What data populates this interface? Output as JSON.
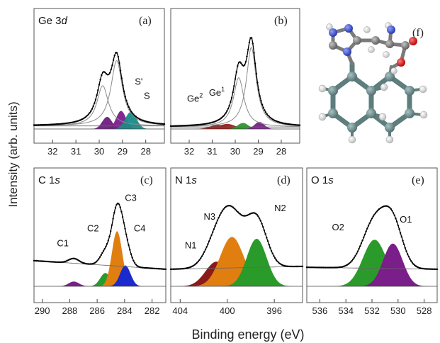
{
  "figure": {
    "ylabel": "Intensity (arb. units)",
    "xlabel": "Binding energy (eV)"
  },
  "chart_data": [
    {
      "id": "a",
      "type": "line",
      "panel_label": "(a)",
      "title_main": "Ge 3",
      "title_orbital": "d",
      "x_reversed": true,
      "xlim": [
        32.8,
        27.2
      ],
      "xticks": [
        32,
        31,
        30,
        29,
        28
      ],
      "y_norm_range": [
        0,
        1
      ],
      "baseline": 0.03,
      "envelope_color": "#000000",
      "components": [
        {
          "name": "",
          "center": 29.66,
          "width": 0.21,
          "amp": 0.12,
          "color": "#6b1e7e"
        },
        {
          "name": "S'",
          "center": 29.06,
          "width": 0.21,
          "amp": 0.18,
          "color": "#7a1e8a"
        },
        {
          "name": "S",
          "center": 28.64,
          "width": 0.24,
          "amp": 0.17,
          "color": "#1a8a8a"
        },
        {
          "name": "",
          "center": 29.25,
          "width": 0.25,
          "amp": 0.65,
          "color": "#888888"
        },
        {
          "name": "",
          "center": 29.85,
          "width": 0.25,
          "amp": 0.4,
          "color": "#888888"
        }
      ],
      "annotations": [
        {
          "text": "S'",
          "x": 28.3,
          "y": 0.44
        },
        {
          "text": "S",
          "x": 27.95,
          "y": 0.3
        }
      ]
    },
    {
      "id": "b",
      "type": "line",
      "panel_label": "(b)",
      "title_main": "",
      "title_orbital": "",
      "x_reversed": true,
      "xlim": [
        32.8,
        27.2
      ],
      "xticks": [
        32,
        31,
        30,
        29,
        28
      ],
      "y_norm_range": [
        0,
        1
      ],
      "baseline": 0.02,
      "envelope_color": "#000000",
      "components": [
        {
          "name": "Ge2",
          "center": 30.75,
          "width": 0.35,
          "amp": 0.04,
          "color": "#8b1a1a"
        },
        {
          "name": "Ge1",
          "center": 30.35,
          "width": 0.35,
          "amp": 0.05,
          "color": "#9b1a1a"
        },
        {
          "name": "",
          "center": 29.66,
          "width": 0.23,
          "amp": 0.06,
          "color": "#2a9a2a"
        },
        {
          "name": "",
          "center": 28.95,
          "width": 0.21,
          "amp": 0.07,
          "color": "#7a1e8a"
        },
        {
          "name": "",
          "center": 29.3,
          "width": 0.22,
          "amp": 0.79,
          "color": "#888888"
        },
        {
          "name": "",
          "center": 29.85,
          "width": 0.23,
          "amp": 0.49,
          "color": "#888888"
        }
      ],
      "annotations": [
        {
          "text": "Ge",
          "sup": "2",
          "x": 31.75,
          "y": 0.27
        },
        {
          "text": "Ge",
          "sup": "1",
          "x": 30.8,
          "y": 0.33
        }
      ]
    },
    {
      "id": "c",
      "type": "line",
      "panel_label": "(c)",
      "title_main": "C 1",
      "title_orbital": "s",
      "x_reversed": true,
      "xlim": [
        290.6,
        281.0
      ],
      "xticks": [
        290,
        288,
        286,
        284,
        282
      ],
      "y_norm_range": [
        0,
        1
      ],
      "sloped_background": [
        0.27,
        0.18
      ],
      "envelope_color": "#000000",
      "components": [
        {
          "name": "C1",
          "center": 287.7,
          "width": 0.38,
          "amp": 0.05,
          "color": "#7a1e8a"
        },
        {
          "name": "C2",
          "center": 285.4,
          "width": 0.38,
          "amp": 0.14,
          "color": "#2a9a2a"
        },
        {
          "name": "C3",
          "center": 284.55,
          "width": 0.38,
          "amp": 0.58,
          "color": "#e07f10"
        },
        {
          "name": "C4",
          "center": 283.95,
          "width": 0.38,
          "amp": 0.22,
          "color": "#1a2acc"
        }
      ],
      "annotations": [
        {
          "text": "C1",
          "x": 288.5,
          "y": 0.42
        },
        {
          "text": "C2",
          "x": 286.3,
          "y": 0.58
        },
        {
          "text": "C3",
          "x": 283.55,
          "y": 0.9
        },
        {
          "text": "C4",
          "x": 282.9,
          "y": 0.58
        }
      ]
    },
    {
      "id": "d",
      "type": "line",
      "panel_label": "(d)",
      "title_main": "N 1",
      "title_orbital": "s",
      "x_reversed": true,
      "xlim": [
        404.8,
        393.6
      ],
      "xticks": [
        404,
        400,
        396
      ],
      "y_norm_range": [
        0,
        1
      ],
      "sloped_background": [
        0.18,
        0.21
      ],
      "envelope_color": "#000000",
      "components": [
        {
          "name": "N1",
          "center": 400.9,
          "width": 0.95,
          "amp": 0.26,
          "color": "#8b1a1a"
        },
        {
          "name": "N3",
          "center": 399.6,
          "width": 1.0,
          "amp": 0.52,
          "color": "#e07f10"
        },
        {
          "name": "N2",
          "center": 397.5,
          "width": 0.85,
          "amp": 0.5,
          "color": "#2a9a2a"
        }
      ],
      "annotations": [
        {
          "text": "N1",
          "x": 403.1,
          "y": 0.4
        },
        {
          "text": "N3",
          "x": 401.5,
          "y": 0.7
        },
        {
          "text": "N2",
          "x": 395.5,
          "y": 0.79
        }
      ]
    },
    {
      "id": "e",
      "type": "line",
      "panel_label": "(e)",
      "title_main": "O 1",
      "title_orbital": "s",
      "x_reversed": true,
      "xlim": [
        537.0,
        527.0
      ],
      "xticks": [
        536,
        534,
        532,
        530,
        528
      ],
      "y_norm_range": [
        0,
        1
      ],
      "sloped_background": [
        0.2,
        0.18
      ],
      "envelope_color": "#000000",
      "components": [
        {
          "name": "O2",
          "center": 531.8,
          "width": 0.9,
          "amp": 0.49,
          "color": "#2a9a2a"
        },
        {
          "name": "O1",
          "center": 530.4,
          "width": 0.75,
          "amp": 0.45,
          "color": "#7a1e8a"
        }
      ],
      "annotations": [
        {
          "text": "O2",
          "x": 534.6,
          "y": 0.59
        },
        {
          "text": "O1",
          "x": 529.4,
          "y": 0.67
        }
      ]
    }
  ],
  "molecule": {
    "panel_label": "(f)",
    "colors": {
      "carbon": "#7a7a7a",
      "nitrogen": "#3a52c8",
      "oxygen": "#d41a1a",
      "hydrogen": "#ededed",
      "germanium": "#5e7d7d"
    }
  }
}
